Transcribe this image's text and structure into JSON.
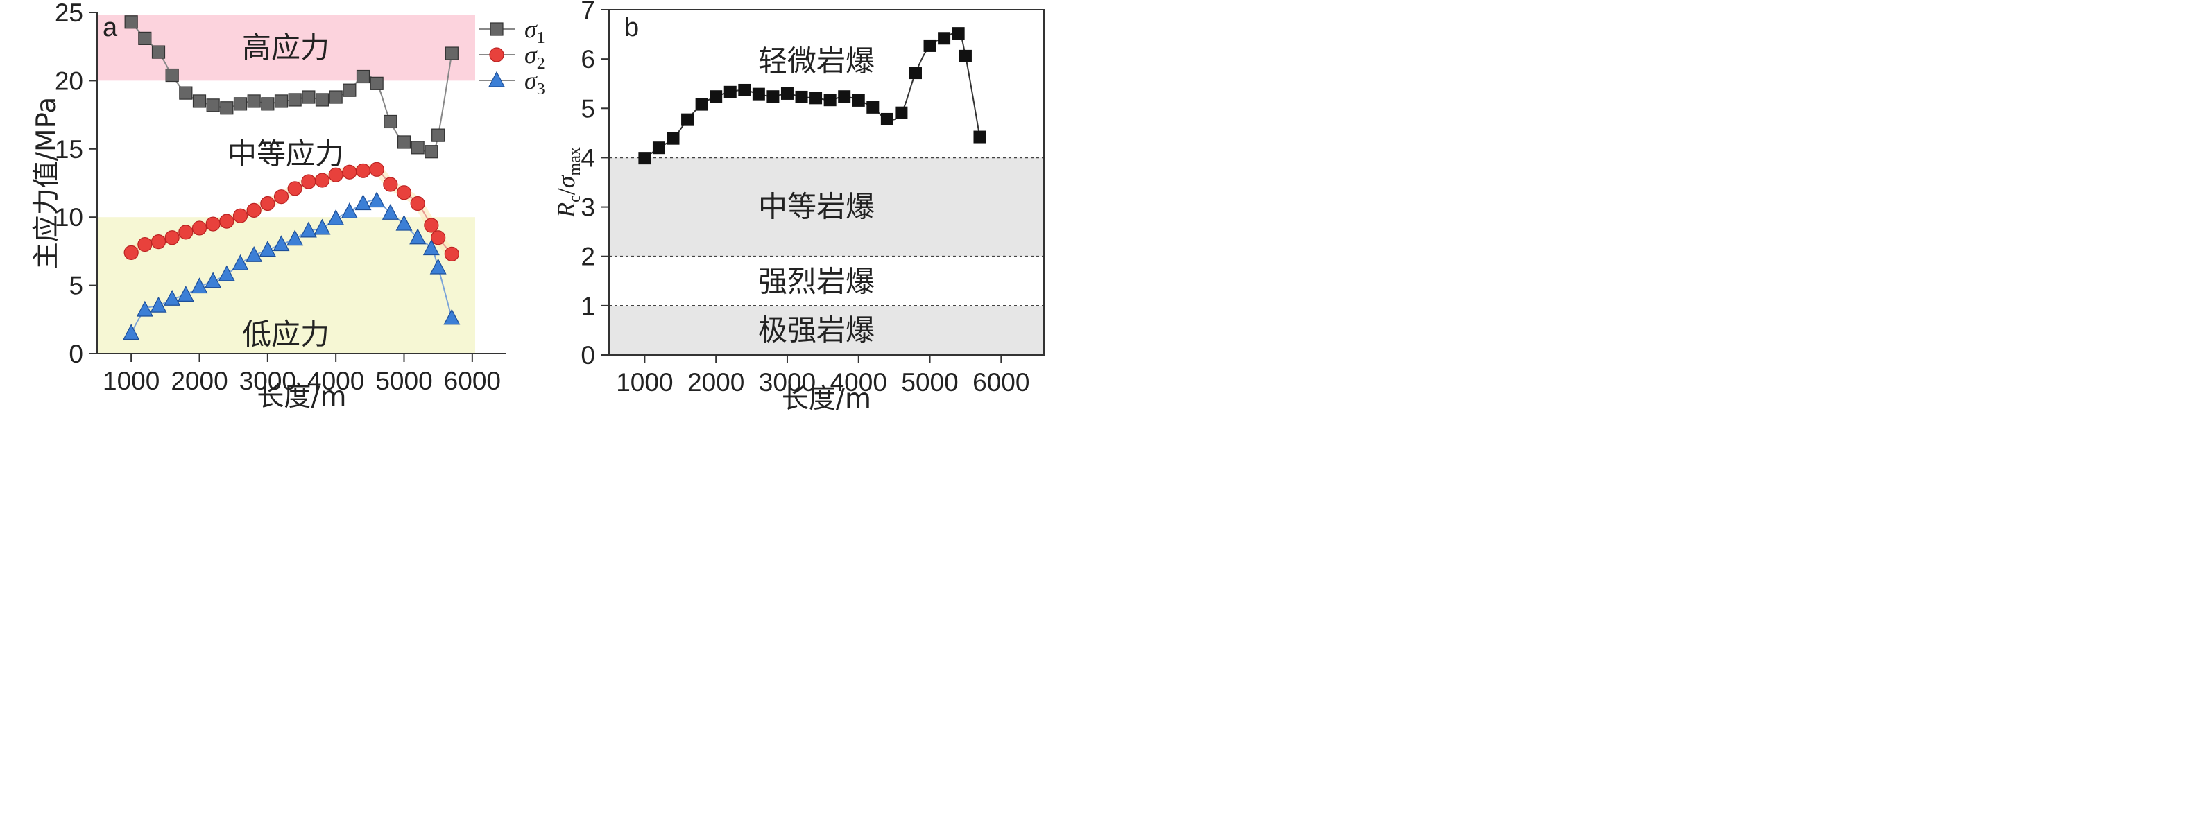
{
  "chart_data": [
    {
      "type": "line",
      "panel_label": "a",
      "xlabel": "长度/m",
      "ylabel": "主应力值/MPa",
      "xlim": [
        500,
        6500
      ],
      "ylim": [
        0,
        25
      ],
      "xticks": [
        1000,
        2000,
        3000,
        4000,
        5000,
        6000
      ],
      "yticks": [
        0,
        5,
        10,
        15,
        20,
        25
      ],
      "zones": [
        {
          "label": "高应力",
          "from": 20,
          "to": 25,
          "color": "#fcd3dd"
        },
        {
          "label": "中等应力",
          "from": 10,
          "to": 20,
          "color": "#ffffff"
        },
        {
          "label": "低应力",
          "from": 0,
          "to": 10,
          "color": "#f6f7d4"
        }
      ],
      "legend": {
        "position": "top-right"
      },
      "series": [
        {
          "name": "σ1",
          "symbol": "σ",
          "sub": "1",
          "marker": "square",
          "color": "#666666",
          "x": [
            1000,
            1200,
            1400,
            1600,
            1800,
            2000,
            2200,
            2400,
            2600,
            2800,
            3000,
            3200,
            3400,
            3600,
            3800,
            4000,
            4200,
            4400,
            4600,
            4800,
            5000,
            5200,
            5400,
            5500,
            5700
          ],
          "y": [
            24.3,
            23.1,
            22.1,
            20.4,
            19.1,
            18.5,
            18.2,
            18.0,
            18.3,
            18.5,
            18.3,
            18.5,
            18.6,
            18.8,
            18.6,
            18.8,
            19.3,
            20.3,
            19.8,
            17.0,
            15.5,
            15.1,
            14.8,
            16.0,
            22.0
          ]
        },
        {
          "name": "σ2",
          "symbol": "σ",
          "sub": "2",
          "marker": "circle",
          "color": "#e8413c",
          "x": [
            1000,
            1200,
            1400,
            1600,
            1800,
            2000,
            2200,
            2400,
            2600,
            2800,
            3000,
            3200,
            3400,
            3600,
            3800,
            4000,
            4200,
            4400,
            4600,
            4800,
            5000,
            5200,
            5400,
            5500,
            5700
          ],
          "y": [
            7.4,
            8.0,
            8.2,
            8.5,
            8.9,
            9.2,
            9.5,
            9.7,
            10.1,
            10.5,
            11.0,
            11.5,
            12.1,
            12.6,
            12.7,
            13.1,
            13.3,
            13.4,
            13.5,
            12.4,
            11.8,
            11.0,
            9.4,
            8.5,
            7.3
          ]
        },
        {
          "name": "σ3",
          "symbol": "σ",
          "sub": "3",
          "marker": "triangle",
          "color": "#3c7fd6",
          "x": [
            1000,
            1200,
            1400,
            1600,
            1800,
            2000,
            2200,
            2400,
            2600,
            2800,
            3000,
            3200,
            3400,
            3600,
            3800,
            4000,
            4200,
            4400,
            4600,
            4800,
            5000,
            5200,
            5400,
            5500,
            5700
          ],
          "y": [
            1.5,
            3.2,
            3.5,
            4.0,
            4.3,
            4.9,
            5.3,
            5.8,
            6.6,
            7.2,
            7.6,
            8.0,
            8.4,
            9.0,
            9.2,
            9.9,
            10.4,
            11.0,
            11.2,
            10.3,
            9.5,
            8.5,
            7.7,
            6.3,
            2.6
          ]
        }
      ]
    },
    {
      "type": "line",
      "panel_label": "b",
      "xlabel": "长度/m",
      "ylabel": {
        "main": "R",
        "main_sub": "c",
        "slash": "/",
        "den": "σ",
        "den_sub": "max"
      },
      "xlim": [
        500,
        6600
      ],
      "ylim": [
        0,
        7
      ],
      "xticks": [
        1000,
        2000,
        3000,
        4000,
        5000,
        6000
      ],
      "yticks": [
        0,
        1,
        2,
        3,
        4,
        5,
        6,
        7
      ],
      "zones": [
        {
          "label": "轻微岩爆",
          "from": 4,
          "to": 7,
          "color": "#ffffff"
        },
        {
          "label": "中等岩爆",
          "from": 2,
          "to": 4,
          "color": "#e6e6e6"
        },
        {
          "label": "强烈岩爆",
          "from": 1,
          "to": 2,
          "color": "#ffffff"
        },
        {
          "label": "极强岩爆",
          "from": 0,
          "to": 1,
          "color": "#e6e6e6"
        }
      ],
      "thresholds": [
        1,
        2,
        4
      ],
      "series": [
        {
          "name": "Rc/σmax",
          "marker": "square",
          "color": "#111111",
          "x": [
            1000,
            1200,
            1400,
            1600,
            1800,
            2000,
            2200,
            2400,
            2600,
            2800,
            3000,
            3200,
            3400,
            3600,
            3800,
            4000,
            4200,
            4400,
            4600,
            4800,
            5000,
            5200,
            5400,
            5500,
            5700
          ],
          "y": [
            3.99,
            4.2,
            4.39,
            4.77,
            5.08,
            5.24,
            5.33,
            5.37,
            5.29,
            5.24,
            5.3,
            5.23,
            5.21,
            5.17,
            5.24,
            5.16,
            5.02,
            4.78,
            4.91,
            5.72,
            6.27,
            6.42,
            6.52,
            6.06,
            4.42
          ]
        }
      ]
    }
  ]
}
